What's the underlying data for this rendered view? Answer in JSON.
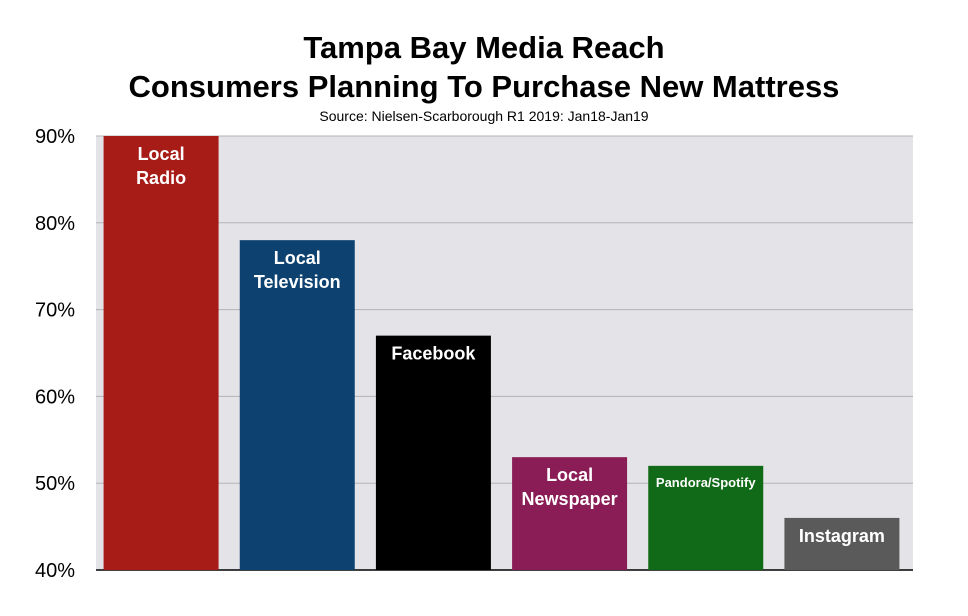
{
  "title_line1": "Tampa Bay Media Reach",
  "title_line2": "Consumers Planning To Purchase New Mattress",
  "subtitle": "Source: Nielsen-Scarborough R1 2019: Jan18-Jan19",
  "chart_data": {
    "type": "bar",
    "title": "Tampa Bay Media Reach Consumers Planning To Purchase New Mattress",
    "subtitle": "Source: Nielsen-Scarborough R1 2019: Jan18-Jan19",
    "categories": [
      "Local Radio",
      "Local Television",
      "Facebook",
      "Local Newspaper",
      "Pandora/Spotify",
      "Instagram"
    ],
    "label_lines": [
      [
        "Local",
        "Radio"
      ],
      [
        "Local",
        "Television"
      ],
      [
        "Facebook"
      ],
      [
        "Local",
        "Newspaper"
      ],
      [
        "Pandora/Spotify"
      ],
      [
        "Instagram"
      ]
    ],
    "values": [
      90,
      78,
      67,
      53,
      52,
      46
    ],
    "colors": [
      "#a81c18",
      "#0c4170",
      "#000000",
      "#8a1d55",
      "#116a17",
      "#5a5a5a"
    ],
    "ylim": [
      40,
      90
    ],
    "yticks": [
      40,
      50,
      60,
      70,
      80,
      90
    ],
    "ytick_labels": [
      "40%",
      "50%",
      "60%",
      "70%",
      "80%",
      "90%"
    ],
    "xlabel": "",
    "ylabel": "",
    "grid": true,
    "plot_background": "#e4e3e8",
    "gridline_color": "#b3b3b6"
  }
}
